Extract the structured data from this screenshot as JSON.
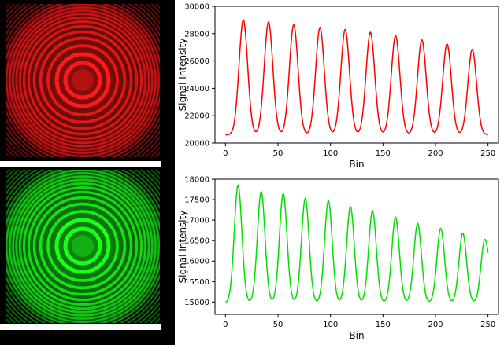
{
  "images": [
    {
      "name": "red-fringe-image",
      "color": "#ff1a1a"
    },
    {
      "name": "green-fringe-image",
      "color": "#1aff1a"
    }
  ],
  "chart_data": [
    {
      "type": "line",
      "xlabel": "Bin",
      "ylabel": "Signal Intensity",
      "xlim": [
        -10,
        260
      ],
      "ylim": [
        20000,
        30000
      ],
      "xticks": [
        0,
        50,
        100,
        150,
        200,
        250
      ],
      "yticks": [
        20000,
        22000,
        24000,
        26000,
        28000,
        30000
      ],
      "color": "#ff0000",
      "series": [
        {
          "x_start": 0,
          "x_end": 250,
          "baseline": 20600,
          "peaks": [
            {
              "x": 17,
              "y": 29000
            },
            {
              "x": 41,
              "y": 28850
            },
            {
              "x": 65,
              "y": 28650
            },
            {
              "x": 90,
              "y": 28450
            },
            {
              "x": 114,
              "y": 28300
            },
            {
              "x": 138,
              "y": 28100
            },
            {
              "x": 162,
              "y": 27850
            },
            {
              "x": 187,
              "y": 27550
            },
            {
              "x": 211,
              "y": 27250
            },
            {
              "x": 235,
              "y": 26850
            }
          ]
        }
      ],
      "grid": false
    },
    {
      "type": "line",
      "xlabel": "Bin",
      "ylabel": "Signal Intensity",
      "xlim": [
        -10,
        260
      ],
      "ylim": [
        14700,
        18000
      ],
      "xticks": [
        0,
        50,
        100,
        150,
        200,
        250
      ],
      "yticks": [
        15000,
        15500,
        16000,
        16500,
        17000,
        17500,
        18000
      ],
      "color": "#00e000",
      "series": [
        {
          "x_start": 0,
          "x_end": 250,
          "baseline": 14980,
          "peaks": [
            {
              "x": 12,
              "y": 17850
            },
            {
              "x": 34,
              "y": 17700
            },
            {
              "x": 55,
              "y": 17650
            },
            {
              "x": 76,
              "y": 17530
            },
            {
              "x": 98,
              "y": 17480
            },
            {
              "x": 119,
              "y": 17330
            },
            {
              "x": 140,
              "y": 17230
            },
            {
              "x": 162,
              "y": 17070
            },
            {
              "x": 183,
              "y": 16920
            },
            {
              "x": 205,
              "y": 16800
            },
            {
              "x": 226,
              "y": 16680
            },
            {
              "x": 247,
              "y": 16530
            }
          ],
          "end_y": 16200
        }
      ],
      "grid": false
    }
  ]
}
